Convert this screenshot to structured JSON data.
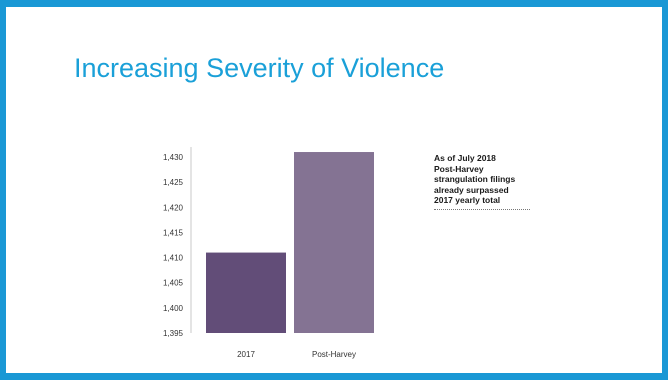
{
  "slide": {
    "title": "Increasing Severity of Violence",
    "accent_color": "#1a98d5",
    "annotation_lines": [
      "As of July 2018",
      "Post-Harvey",
      "strangulation filings",
      "already surpassed",
      "2017 yearly total"
    ]
  },
  "chart_data": {
    "type": "bar",
    "categories": [
      "2017",
      "Post-Harvey"
    ],
    "values": [
      1411,
      1431
    ],
    "bar_colors": [
      "#624d78",
      "#847393"
    ],
    "title": "",
    "xlabel": "",
    "ylabel": "",
    "ylim": [
      1395,
      1432
    ],
    "yticks": [
      1395,
      1400,
      1405,
      1410,
      1415,
      1420,
      1425,
      1430
    ],
    "ytick_labels": [
      "1,395",
      "1,400",
      "1,405",
      "1,410",
      "1,415",
      "1,420",
      "1,425",
      "1,430"
    ],
    "grid": false,
    "legend": "none"
  }
}
